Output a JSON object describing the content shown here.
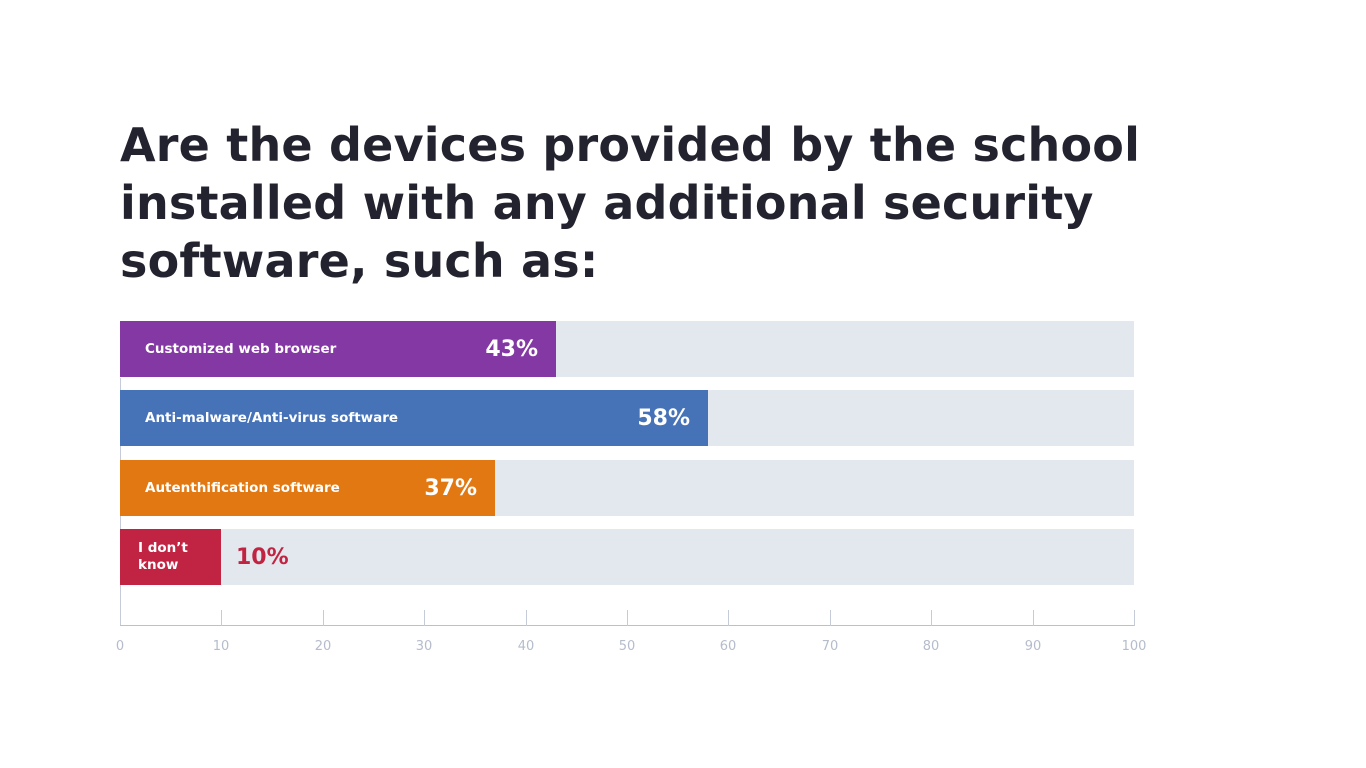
{
  "title": "Are the devices provided by the school installed with any additional security software, such as:",
  "colors": {
    "title": "#23232f",
    "track": "#e3e7ee",
    "axis": "#b9c0d0",
    "tick_label": "#b5bccb",
    "bar_purple": "#8338a3",
    "bar_blue": "#4672b7",
    "bar_orange": "#e27812",
    "bar_red": "#c12443"
  },
  "bars": [
    {
      "label": "Customized web browser",
      "value": 43,
      "value_label": "43%",
      "color": "#8338a3"
    },
    {
      "label": "Anti-malware/Anti-virus software",
      "value": 58,
      "value_label": "58%",
      "color": "#4672b7"
    },
    {
      "label": "Autenthification software",
      "value": 37,
      "value_label": "37%",
      "color": "#e27812"
    },
    {
      "label": "I don’t know",
      "value": 10,
      "value_label": "10%",
      "color": "#c12443"
    }
  ],
  "axis": {
    "ticks": [
      "0",
      "10",
      "20",
      "30",
      "40",
      "50",
      "60",
      "70",
      "80",
      "90",
      "100"
    ]
  },
  "chart_data": {
    "type": "bar",
    "orientation": "horizontal",
    "title": "Are the devices provided by the school installed with any additional security software, such as:",
    "categories": [
      "Customized web browser",
      "Anti-malware/Anti-virus software",
      "Autenthification software",
      "I don’t know"
    ],
    "values": [
      43,
      58,
      37,
      10
    ],
    "value_labels": [
      "43%",
      "58%",
      "37%",
      "10%"
    ],
    "colors": [
      "#8338a3",
      "#4672b7",
      "#e27812",
      "#c12443"
    ],
    "xlabel": "",
    "ylabel": "",
    "xlim": [
      0,
      100
    ],
    "xticks": [
      0,
      10,
      20,
      30,
      40,
      50,
      60,
      70,
      80,
      90,
      100
    ],
    "grid": false,
    "legend": null
  }
}
